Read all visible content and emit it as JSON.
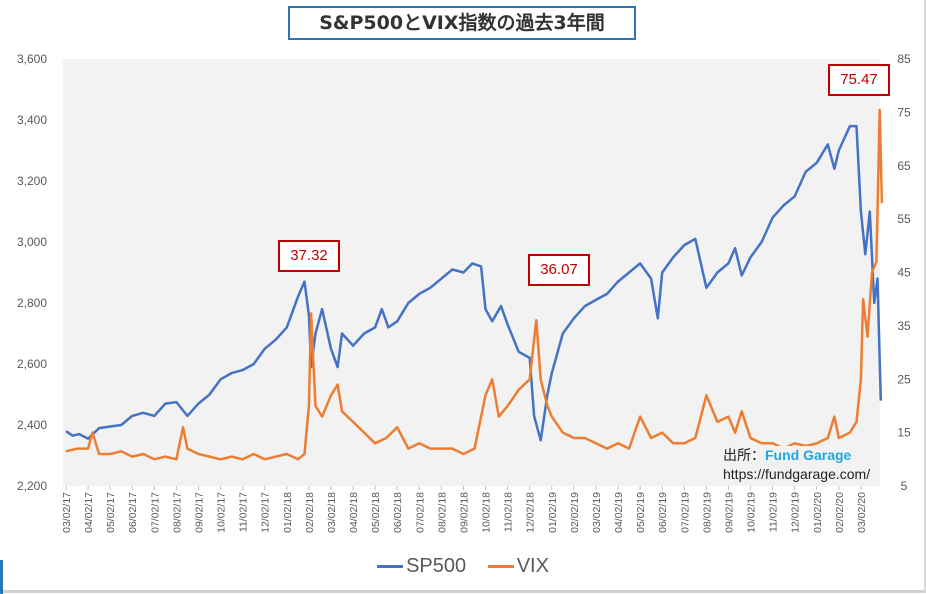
{
  "chart_data": {
    "type": "line",
    "title": "S&P500とVIX指数の過去3年間",
    "x_tick_labels": [
      "03/02/17",
      "04/02/17",
      "05/02/17",
      "06/02/17",
      "07/02/17",
      "08/02/17",
      "09/02/17",
      "10/02/17",
      "11/02/17",
      "12/02/17",
      "01/02/18",
      "02/02/18",
      "03/02/18",
      "04/02/18",
      "05/02/18",
      "06/02/18",
      "07/02/18",
      "08/02/18",
      "09/02/18",
      "10/02/18",
      "11/02/18",
      "12/02/18",
      "01/02/19",
      "02/02/19",
      "03/02/19",
      "04/02/19",
      "05/02/19",
      "06/02/19",
      "07/02/19",
      "08/02/19",
      "09/02/19",
      "10/02/19",
      "11/02/19",
      "12/02/19",
      "01/02/20",
      "02/02/20",
      "03/02/20"
    ],
    "y_left": {
      "ticks": [
        "2,200",
        "2,400",
        "2,600",
        "2,800",
        "3,000",
        "3,200",
        "3,400",
        "3,600"
      ],
      "range": [
        2200,
        3600
      ]
    },
    "y_right": {
      "ticks": [
        "5",
        "15",
        "25",
        "35",
        "45",
        "55",
        "65",
        "75",
        "85"
      ],
      "range": [
        5,
        85
      ]
    },
    "x_unit": "months since 03/02/17",
    "series": [
      {
        "name": "SP500",
        "color": "#4472c4",
        "axis": "left",
        "points": [
          [
            0,
            2380
          ],
          [
            0.3,
            2365
          ],
          [
            0.6,
            2370
          ],
          [
            1,
            2355
          ],
          [
            1.5,
            2390
          ],
          [
            2,
            2395
          ],
          [
            2.5,
            2400
          ],
          [
            3,
            2430
          ],
          [
            3.5,
            2440
          ],
          [
            4,
            2430
          ],
          [
            4.5,
            2470
          ],
          [
            5,
            2475
          ],
          [
            5.5,
            2430
          ],
          [
            6,
            2470
          ],
          [
            6.5,
            2500
          ],
          [
            7,
            2550
          ],
          [
            7.5,
            2570
          ],
          [
            8,
            2580
          ],
          [
            8.5,
            2600
          ],
          [
            9,
            2650
          ],
          [
            9.5,
            2680
          ],
          [
            10,
            2720
          ],
          [
            10.5,
            2820
          ],
          [
            10.8,
            2870
          ],
          [
            11,
            2760
          ],
          [
            11.1,
            2590
          ],
          [
            11.3,
            2700
          ],
          [
            11.6,
            2780
          ],
          [
            12,
            2650
          ],
          [
            12.3,
            2590
          ],
          [
            12.5,
            2700
          ],
          [
            13,
            2660
          ],
          [
            13.5,
            2700
          ],
          [
            14,
            2720
          ],
          [
            14.3,
            2780
          ],
          [
            14.6,
            2720
          ],
          [
            15,
            2740
          ],
          [
            15.5,
            2800
          ],
          [
            16,
            2830
          ],
          [
            16.5,
            2850
          ],
          [
            17,
            2880
          ],
          [
            17.5,
            2910
          ],
          [
            18,
            2900
          ],
          [
            18.4,
            2930
          ],
          [
            18.8,
            2920
          ],
          [
            19,
            2780
          ],
          [
            19.3,
            2740
          ],
          [
            19.7,
            2790
          ],
          [
            20,
            2730
          ],
          [
            20.5,
            2640
          ],
          [
            21,
            2620
          ],
          [
            21.2,
            2430
          ],
          [
            21.5,
            2350
          ],
          [
            21.8,
            2500
          ],
          [
            22,
            2570
          ],
          [
            22.5,
            2700
          ],
          [
            23,
            2750
          ],
          [
            23.5,
            2790
          ],
          [
            24,
            2810
          ],
          [
            24.5,
            2830
          ],
          [
            25,
            2870
          ],
          [
            25.5,
            2900
          ],
          [
            26,
            2930
          ],
          [
            26.5,
            2880
          ],
          [
            26.8,
            2750
          ],
          [
            27,
            2900
          ],
          [
            27.5,
            2950
          ],
          [
            28,
            2990
          ],
          [
            28.5,
            3010
          ],
          [
            29,
            2850
          ],
          [
            29.5,
            2900
          ],
          [
            30,
            2930
          ],
          [
            30.3,
            2980
          ],
          [
            30.6,
            2890
          ],
          [
            31,
            2950
          ],
          [
            31.5,
            3000
          ],
          [
            32,
            3080
          ],
          [
            32.5,
            3120
          ],
          [
            33,
            3150
          ],
          [
            33.5,
            3230
          ],
          [
            34,
            3260
          ],
          [
            34.5,
            3320
          ],
          [
            34.8,
            3240
          ],
          [
            35,
            3300
          ],
          [
            35.5,
            3380
          ],
          [
            35.8,
            3380
          ],
          [
            36,
            3100
          ],
          [
            36.2,
            2960
          ],
          [
            36.4,
            3100
          ],
          [
            36.6,
            2800
          ],
          [
            36.75,
            2880
          ],
          [
            36.9,
            2480
          ]
        ]
      },
      {
        "name": "VIX",
        "color": "#ed7d31",
        "axis": "right",
        "points": [
          [
            0,
            11.5
          ],
          [
            0.5,
            12
          ],
          [
            1,
            12
          ],
          [
            1.2,
            15
          ],
          [
            1.5,
            11
          ],
          [
            2,
            11
          ],
          [
            2.5,
            11.5
          ],
          [
            3,
            10.5
          ],
          [
            3.5,
            11
          ],
          [
            4,
            10
          ],
          [
            4.5,
            10.5
          ],
          [
            5,
            10
          ],
          [
            5.3,
            16
          ],
          [
            5.5,
            12
          ],
          [
            6,
            11
          ],
          [
            6.5,
            10.5
          ],
          [
            7,
            10
          ],
          [
            7.5,
            10.5
          ],
          [
            8,
            10
          ],
          [
            8.5,
            11
          ],
          [
            9,
            10
          ],
          [
            9.5,
            10.5
          ],
          [
            10,
            11
          ],
          [
            10.5,
            10
          ],
          [
            10.8,
            11
          ],
          [
            11,
            20
          ],
          [
            11.1,
            37.32
          ],
          [
            11.3,
            20
          ],
          [
            11.6,
            18
          ],
          [
            12,
            22
          ],
          [
            12.3,
            24
          ],
          [
            12.5,
            19
          ],
          [
            13,
            17
          ],
          [
            13.5,
            15
          ],
          [
            14,
            13
          ],
          [
            14.5,
            14
          ],
          [
            15,
            16
          ],
          [
            15.5,
            12
          ],
          [
            16,
            13
          ],
          [
            16.5,
            12
          ],
          [
            17,
            12
          ],
          [
            17.5,
            12
          ],
          [
            18,
            11
          ],
          [
            18.5,
            12
          ],
          [
            19,
            22
          ],
          [
            19.3,
            25
          ],
          [
            19.6,
            18
          ],
          [
            20,
            20
          ],
          [
            20.5,
            23
          ],
          [
            21,
            25
          ],
          [
            21.3,
            36.07
          ],
          [
            21.5,
            25
          ],
          [
            21.8,
            20
          ],
          [
            22,
            18
          ],
          [
            22.5,
            15
          ],
          [
            23,
            14
          ],
          [
            23.5,
            14
          ],
          [
            24,
            13
          ],
          [
            24.5,
            12
          ],
          [
            25,
            13
          ],
          [
            25.5,
            12
          ],
          [
            26,
            18
          ],
          [
            26.5,
            14
          ],
          [
            27,
            15
          ],
          [
            27.5,
            13
          ],
          [
            28,
            13
          ],
          [
            28.5,
            14
          ],
          [
            29,
            22
          ],
          [
            29.5,
            17
          ],
          [
            30,
            18
          ],
          [
            30.3,
            15
          ],
          [
            30.6,
            19
          ],
          [
            31,
            14
          ],
          [
            31.5,
            13
          ],
          [
            32,
            13
          ],
          [
            32.5,
            12
          ],
          [
            33,
            13
          ],
          [
            33.5,
            12.5
          ],
          [
            34,
            13
          ],
          [
            34.5,
            14
          ],
          [
            34.8,
            18
          ],
          [
            35,
            14
          ],
          [
            35.5,
            15
          ],
          [
            35.8,
            17
          ],
          [
            36,
            25
          ],
          [
            36.1,
            40
          ],
          [
            36.3,
            33
          ],
          [
            36.5,
            45
          ],
          [
            36.7,
            47
          ],
          [
            36.85,
            75.47
          ],
          [
            36.95,
            58
          ]
        ]
      }
    ],
    "annotations": [
      {
        "label": "37.32",
        "series": "VIX",
        "x": 11.1
      },
      {
        "label": "36.07",
        "series": "VIX",
        "x": 21.3
      },
      {
        "label": "75.47",
        "series": "VIX",
        "x": 36.85
      }
    ],
    "legend": "bottom",
    "grid": false
  },
  "source": {
    "prefix": "出所：",
    "brand": "Fund Garage",
    "url": "https://fundgarage.com/"
  }
}
